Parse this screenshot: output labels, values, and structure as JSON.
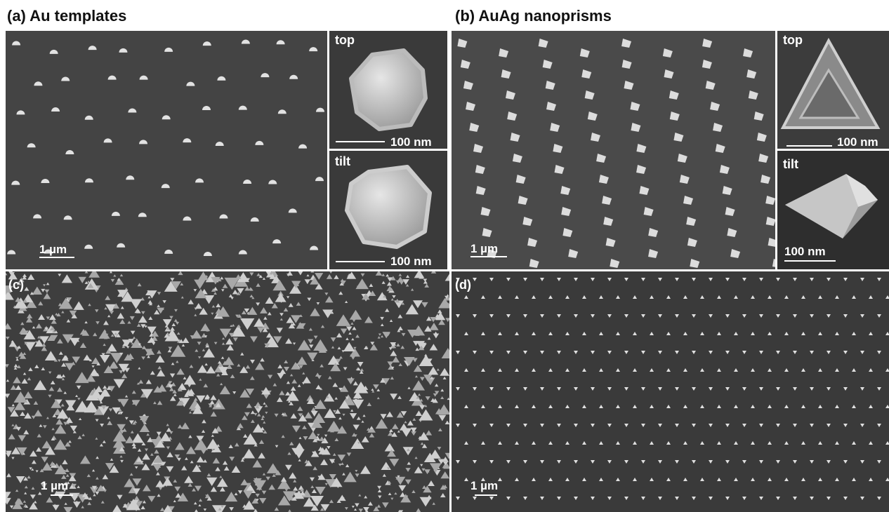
{
  "panels": [
    {
      "title": "(a) Au templates",
      "scale": "1 µm",
      "insets": [
        {
          "label": "top",
          "scale": "100 nm"
        },
        {
          "label": "tilt",
          "scale": "100 nm"
        }
      ]
    },
    {
      "title": "(b) AuAg nanoprisms",
      "scale": "1 µm",
      "insets": [
        {
          "label": "top",
          "scale": "100 nm"
        },
        {
          "label": "tilt",
          "scale": "100 nm"
        }
      ]
    },
    {
      "title": "(c)",
      "scale": "1 µm"
    },
    {
      "title": "(d)",
      "scale": "1 µm"
    }
  ]
}
